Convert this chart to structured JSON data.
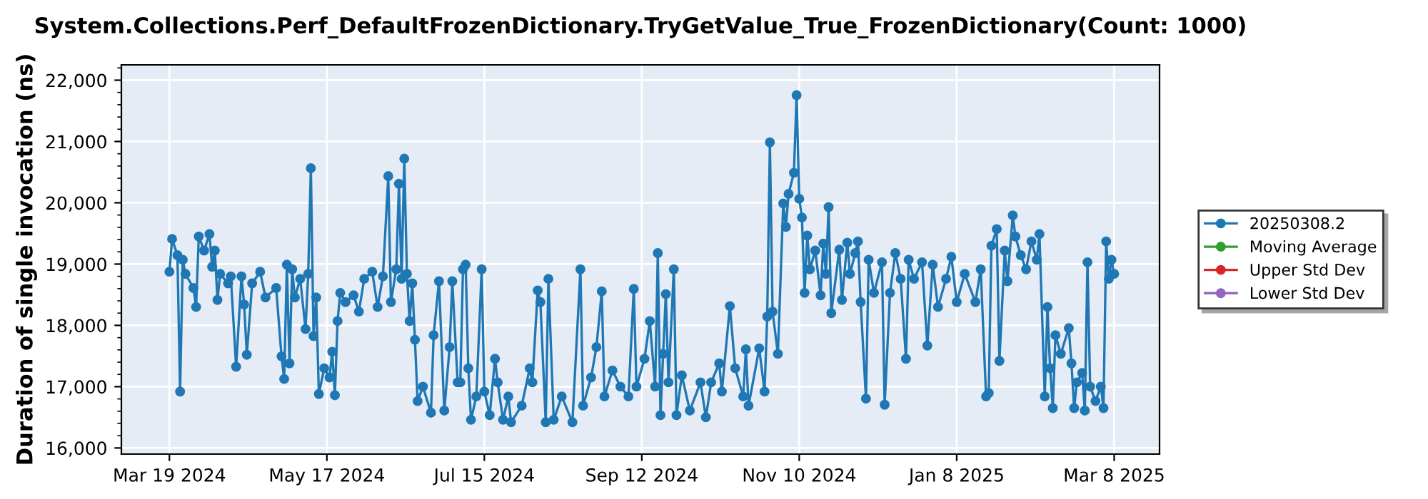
{
  "chart_data": {
    "type": "line",
    "title": "System.Collections.Perf_DefaultFrozenDictionary.TryGetValue_True_FrozenDictionary(Count: 1000)",
    "ylabel": "Duration of single invocation (ns)",
    "xlim": [
      "2024-03-01",
      "2025-03-25"
    ],
    "xticks": [
      {
        "value": "2024-03-19",
        "label": "Mar 19 2024"
      },
      {
        "value": "2024-05-17",
        "label": "May 17 2024"
      },
      {
        "value": "2024-07-15",
        "label": "Jul 15 2024"
      },
      {
        "value": "2024-09-12",
        "label": "Sep 12 2024"
      },
      {
        "value": "2024-11-10",
        "label": "Nov 10 2024"
      },
      {
        "value": "2025-01-08",
        "label": "Jan 8 2025"
      },
      {
        "value": "2025-03-08",
        "label": "Mar 8 2025"
      }
    ],
    "ylim": [
      15900,
      22250
    ],
    "yticks": [
      {
        "value": 16000,
        "label": "16,000"
      },
      {
        "value": 17000,
        "label": "17,000"
      },
      {
        "value": 18000,
        "label": "18,000"
      },
      {
        "value": 19000,
        "label": "19,000"
      },
      {
        "value": 20000,
        "label": "20,000"
      },
      {
        "value": 21000,
        "label": "21,000"
      },
      {
        "value": 22000,
        "label": "22,000"
      }
    ],
    "grid": true,
    "legend": "right",
    "marker": "circle",
    "line_style": "solid",
    "series": [
      {
        "name": "20250308.2",
        "color": "#1f77b4",
        "x": [
          "2024-03-19",
          "2024-03-20",
          "2024-03-22",
          "2024-03-23",
          "2024-03-24",
          "2024-03-25",
          "2024-03-28",
          "2024-03-29",
          "2024-03-30",
          "2024-04-01",
          "2024-04-03",
          "2024-04-04",
          "2024-04-05",
          "2024-04-06",
          "2024-04-07",
          "2024-04-10",
          "2024-04-11",
          "2024-04-13",
          "2024-04-15",
          "2024-04-16",
          "2024-04-17",
          "2024-04-19",
          "2024-04-22",
          "2024-04-24",
          "2024-04-28",
          "2024-04-30",
          "2024-05-01",
          "2024-05-02",
          "2024-05-03",
          "2024-05-04",
          "2024-05-05",
          "2024-05-07",
          "2024-05-09",
          "2024-05-10",
          "2024-05-11",
          "2024-05-12",
          "2024-05-13",
          "2024-05-14",
          "2024-05-16",
          "2024-05-18",
          "2024-05-19",
          "2024-05-20",
          "2024-05-21",
          "2024-05-22",
          "2024-05-24",
          "2024-05-27",
          "2024-05-29",
          "2024-05-31",
          "2024-06-03",
          "2024-06-05",
          "2024-06-07",
          "2024-06-09",
          "2024-06-10",
          "2024-06-12",
          "2024-06-13",
          "2024-06-14",
          "2024-06-15",
          "2024-06-16",
          "2024-06-17",
          "2024-06-18",
          "2024-06-19",
          "2024-06-20",
          "2024-06-22",
          "2024-06-25",
          "2024-06-26",
          "2024-06-28",
          "2024-06-30",
          "2024-07-02",
          "2024-07-03",
          "2024-07-05",
          "2024-07-06",
          "2024-07-07",
          "2024-07-08",
          "2024-07-09",
          "2024-07-10",
          "2024-07-12",
          "2024-07-14",
          "2024-07-15",
          "2024-07-17",
          "2024-07-19",
          "2024-07-20",
          "2024-07-22",
          "2024-07-24",
          "2024-07-25",
          "2024-07-29",
          "2024-08-01",
          "2024-08-02",
          "2024-08-04",
          "2024-08-05",
          "2024-08-07",
          "2024-08-08",
          "2024-08-10",
          "2024-08-13",
          "2024-08-17",
          "2024-08-20",
          "2024-08-21",
          "2024-08-24",
          "2024-08-26",
          "2024-08-28",
          "2024-08-29",
          "2024-09-01",
          "2024-09-04",
          "2024-09-07",
          "2024-09-09",
          "2024-09-10",
          "2024-09-13",
          "2024-09-15",
          "2024-09-17",
          "2024-09-18",
          "2024-09-19",
          "2024-09-20",
          "2024-09-21",
          "2024-09-22",
          "2024-09-24",
          "2024-09-25",
          "2024-09-27",
          "2024-09-30",
          "2024-10-04",
          "2024-10-06",
          "2024-10-08",
          "2024-10-11",
          "2024-10-12",
          "2024-10-15",
          "2024-10-17",
          "2024-10-20",
          "2024-10-21",
          "2024-10-22",
          "2024-10-26",
          "2024-10-28",
          "2024-10-29",
          "2024-10-30",
          "2024-10-31",
          "2024-11-02",
          "2024-11-04",
          "2024-11-05",
          "2024-11-06",
          "2024-11-08",
          "2024-11-09",
          "2024-11-10",
          "2024-11-11",
          "2024-11-12",
          "2024-11-13",
          "2024-11-14",
          "2024-11-16",
          "2024-11-18",
          "2024-11-19",
          "2024-11-20",
          "2024-11-21",
          "2024-11-22",
          "2024-11-25",
          "2024-11-26",
          "2024-11-28",
          "2024-11-29",
          "2024-12-01",
          "2024-12-02",
          "2024-12-03",
          "2024-12-05",
          "2024-12-06",
          "2024-12-08",
          "2024-12-11",
          "2024-12-12",
          "2024-12-14",
          "2024-12-16",
          "2024-12-18",
          "2024-12-20",
          "2024-12-21",
          "2024-12-23",
          "2024-12-26",
          "2024-12-28",
          "2024-12-30",
          "2025-01-01",
          "2025-01-04",
          "2025-01-06",
          "2025-01-08",
          "2025-01-11",
          "2025-01-15",
          "2025-01-17",
          "2025-01-19",
          "2025-01-20",
          "2025-01-21",
          "2025-01-23",
          "2025-01-24",
          "2025-01-26",
          "2025-01-27",
          "2025-01-29",
          "2025-01-30",
          "2025-02-01",
          "2025-02-03",
          "2025-02-05",
          "2025-02-07",
          "2025-02-08",
          "2025-02-10",
          "2025-02-11",
          "2025-02-12",
          "2025-02-13",
          "2025-02-14",
          "2025-02-16",
          "2025-02-19",
          "2025-02-20",
          "2025-02-21",
          "2025-02-22",
          "2025-02-24",
          "2025-02-25",
          "2025-02-26",
          "2025-02-27",
          "2025-03-01",
          "2025-03-03",
          "2025-03-04",
          "2025-03-05",
          "2025-03-06",
          "2025-03-07",
          "2025-03-08"
        ],
        "values": [
          18875,
          19410,
          19145,
          16920,
          19070,
          18840,
          18610,
          18300,
          19450,
          19220,
          19490,
          18955,
          19220,
          18415,
          18840,
          18685,
          18800,
          17325,
          18800,
          18340,
          17520,
          18685,
          18875,
          18455,
          18610,
          17495,
          17125,
          18990,
          17380,
          18915,
          18455,
          18760,
          17940,
          18840,
          20565,
          17825,
          18455,
          16880,
          17300,
          17150,
          17570,
          16860,
          18070,
          18530,
          18380,
          18490,
          18225,
          18760,
          18875,
          18300,
          18800,
          20435,
          18380,
          18915,
          20310,
          18760,
          20720,
          18840,
          18070,
          18685,
          17765,
          16765,
          17000,
          16575,
          17840,
          18720,
          16610,
          17645,
          18720,
          17070,
          17070,
          18915,
          18990,
          17300,
          16460,
          16840,
          18915,
          16920,
          16535,
          17455,
          17070,
          16460,
          16840,
          16420,
          16690,
          17300,
          17070,
          18570,
          18380,
          16420,
          18760,
          16460,
          16840,
          16420,
          18915,
          16690,
          17150,
          17645,
          18555,
          16840,
          17265,
          17000,
          16840,
          18595,
          17000,
          17455,
          18070,
          17000,
          19180,
          16535,
          17535,
          18510,
          17070,
          18915,
          16535,
          17185,
          16610,
          17070,
          16500,
          17070,
          17380,
          16920,
          18315,
          17300,
          16840,
          17610,
          16690,
          17625,
          16920,
          18145,
          20985,
          18225,
          17535,
          19990,
          19605,
          20145,
          20490,
          21755,
          20065,
          19760,
          18530,
          19465,
          18915,
          19220,
          18490,
          19335,
          18840,
          19930,
          18200,
          19235,
          18415,
          19350,
          18840,
          19180,
          19370,
          18380,
          16805,
          19070,
          18530,
          19030,
          16705,
          18530,
          19180,
          18760,
          17455,
          19070,
          18760,
          19030,
          17670,
          18990,
          18300,
          18760,
          19120,
          18380,
          18840,
          18380,
          18915,
          16840,
          16895,
          19300,
          19570,
          17420,
          19220,
          18720,
          19795,
          19450,
          19145,
          18915,
          19370,
          19070,
          19490,
          16840,
          18300,
          17300,
          16650,
          17840,
          17535,
          17955,
          17380,
          16650,
          17070,
          17225,
          16610,
          19030,
          17000,
          16765,
          17000,
          16650,
          19370,
          18760,
          19070,
          18840
        ]
      },
      {
        "name": "Moving Average",
        "color": "#2ca02c"
      },
      {
        "name": "Upper Std Dev",
        "color": "#d62728"
      },
      {
        "name": "Lower Std Dev",
        "color": "#9467bd"
      }
    ]
  }
}
